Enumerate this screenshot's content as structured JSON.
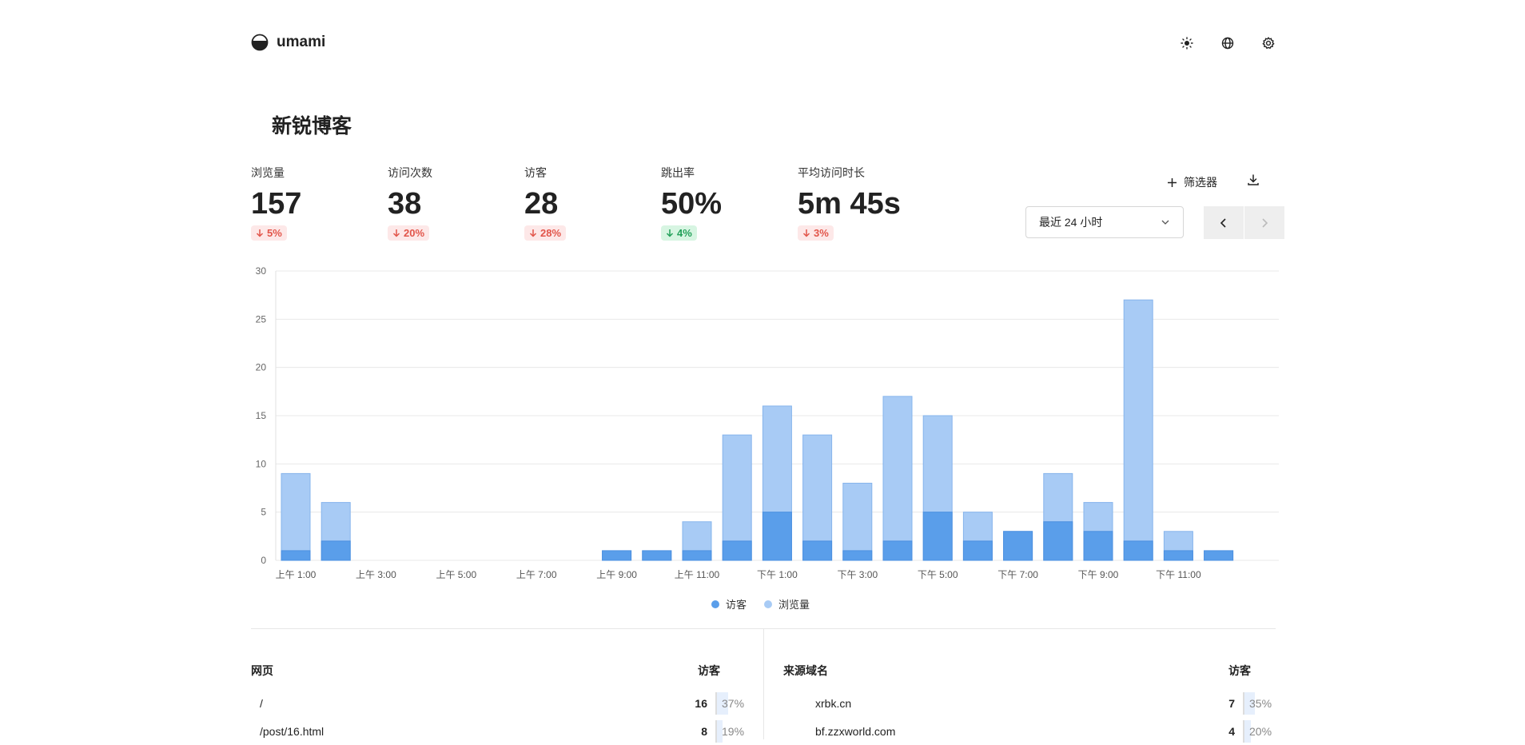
{
  "app": {
    "name": "umami",
    "page_title": "新锐博客"
  },
  "header_icons": [
    "sun-icon",
    "globe-icon",
    "gear-icon"
  ],
  "metrics": [
    {
      "label": "浏览量",
      "value": "157",
      "change": "5%",
      "direction": "down"
    },
    {
      "label": "访问次数",
      "value": "38",
      "change": "20%",
      "direction": "down"
    },
    {
      "label": "访客",
      "value": "28",
      "change": "28%",
      "direction": "down"
    },
    {
      "label": "跳出率",
      "value": "50%",
      "change": "4%",
      "direction": "up"
    },
    {
      "label": "平均访问时长",
      "value": "5m 45s",
      "change": "3%",
      "direction": "down"
    }
  ],
  "toolbar": {
    "filter_label": "筛选器",
    "date_range": "最近 24 小时"
  },
  "chart_data": {
    "type": "bar",
    "categories": [
      "上午 1:00",
      "上午 2:00",
      "上午 3:00",
      "上午 4:00",
      "上午 5:00",
      "上午 6:00",
      "上午 7:00",
      "上午 8:00",
      "上午 9:00",
      "上午 10:00",
      "上午 11:00",
      "下午 12:00",
      "下午 1:00",
      "下午 2:00",
      "下午 3:00",
      "下午 4:00",
      "下午 5:00",
      "下午 6:00",
      "下午 7:00",
      "下午 8:00",
      "下午 9:00",
      "下午 10:00",
      "下午 11:00",
      "上午 12:00"
    ],
    "x_tick_labels": [
      "上午 1:00",
      "上午 3:00",
      "上午 5:00",
      "上午 7:00",
      "上午 9:00",
      "上午 11:00",
      "下午 1:00",
      "下午 3:00",
      "下午 5:00",
      "下午 7:00",
      "下午 9:00",
      "下午 11:00"
    ],
    "y_ticks": [
      "0",
      "5",
      "10",
      "15",
      "20",
      "25",
      "30"
    ],
    "ylim": [
      0,
      30
    ],
    "series": [
      {
        "name": "访客",
        "color": "#5a9eea",
        "values": [
          1,
          2,
          0,
          0,
          0,
          0,
          0,
          0,
          1,
          1,
          1,
          2,
          5,
          2,
          1,
          2,
          5,
          2,
          3,
          4,
          3,
          2,
          1,
          1
        ]
      },
      {
        "name": "浏览量",
        "color": "#a8cbf5",
        "values": [
          9,
          6,
          0,
          0,
          0,
          0,
          0,
          0,
          1,
          1,
          4,
          13,
          16,
          13,
          8,
          17,
          15,
          5,
          3,
          9,
          6,
          27,
          3,
          1
        ]
      }
    ],
    "legend_position": "bottom",
    "grid": true
  },
  "panels": [
    {
      "title": "网页",
      "metric_label": "访客",
      "rows": [
        {
          "name": "/",
          "count": "16",
          "pct": "37%",
          "fraction": 0.37
        },
        {
          "name": "/post/16.html",
          "count": "8",
          "pct": "19%",
          "fraction": 0.19
        }
      ]
    },
    {
      "title": "来源域名",
      "metric_label": "访客",
      "rows": [
        {
          "name": "xrbk.cn",
          "count": "7",
          "pct": "35%",
          "fraction": 0.35
        },
        {
          "name": "bf.zzxworld.com",
          "count": "4",
          "pct": "20%",
          "fraction": 0.2
        }
      ]
    }
  ]
}
